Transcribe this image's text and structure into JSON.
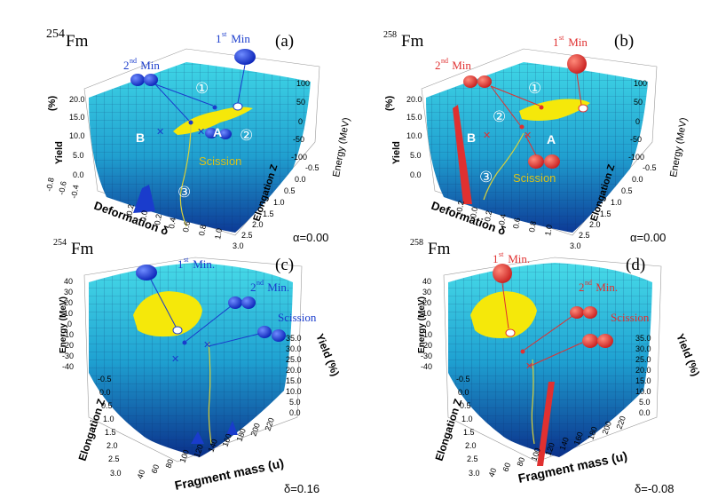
{
  "colors": {
    "blue_accent": "#1a3ccc",
    "red_accent": "#e03030",
    "surface": "#27b6d2",
    "surface_dark": "#0f3f9a",
    "yellow": "#f5e80a",
    "scission_text": "#d9c21a"
  },
  "panels": [
    {
      "nucleus_mass": "254",
      "nucleus_sym": "Fm",
      "panel_label": "(a)",
      "param": "α=0.00",
      "min1_label": "st",
      "min1_num": "1",
      "min1_word": " Min",
      "min2_num": "2",
      "min2_label": "nd",
      "min2_word": " Min",
      "circled": [
        "①",
        "②",
        "③"
      ],
      "point_A": "A",
      "point_B": "B",
      "scission": "Scission",
      "axis_x": "Deformation δ",
      "axis_y": "Elongation Z",
      "axis_yield": "Yield",
      "axis_yield_unit": "(%)",
      "axis_energy": "Energy (MeV)",
      "x_ticks": [
        "-0.8",
        "-0.6",
        "-0.4",
        "-0.2",
        "0.0",
        "0.2",
        "0.4",
        "0.6",
        "0.8",
        "1.0"
      ],
      "z_ticks": [
        "-0.5",
        "0.0",
        "0.5",
        "1.0",
        "1.5",
        "2.0",
        "2.5",
        "3.0"
      ],
      "yield_ticks": [
        "20.0",
        "15.0",
        "10.0",
        "5.0",
        "0.0"
      ],
      "energy_ticks": [
        "100",
        "50",
        "0",
        "-50",
        "-100"
      ]
    },
    {
      "nucleus_mass": "258",
      "nucleus_sym": "Fm",
      "panel_label": "(b)",
      "param": "α=0.00",
      "min1_label": "st",
      "min1_num": "1",
      "min1_word": " Min",
      "min2_num": "2",
      "min2_label": "nd",
      "min2_word": " Min",
      "circled": [
        "①",
        "②",
        "③"
      ],
      "point_A": "A",
      "point_B": "B",
      "scission": "Scission",
      "axis_x": "Deformation δ",
      "axis_y": "Elongation Z",
      "axis_yield": "Yield",
      "axis_yield_unit": "(%)",
      "axis_energy": "Energy (MeV)",
      "x_ticks": [
        "-0.8",
        "-0.6",
        "-0.4",
        "-0.2",
        "0.0",
        "0.2",
        "0.4",
        "0.6",
        "0.8",
        "1.0"
      ],
      "z_ticks": [
        "-0.5",
        "0.0",
        "0.5",
        "1.0",
        "1.5",
        "2.0",
        "2.5",
        "3.0"
      ],
      "yield_ticks": [
        "20.0",
        "15.0",
        "10.0",
        "5.0",
        "0.0"
      ],
      "energy_ticks": [
        "100",
        "50",
        "0",
        "-50",
        "-100"
      ]
    },
    {
      "nucleus_mass": "254",
      "nucleus_sym": "Fm",
      "panel_label": "(c)",
      "param": "δ=0.16",
      "min1_num": "1",
      "min1_label": "st",
      "min1_word": " Min.",
      "min2_num": "2",
      "min2_label": "nd",
      "min2_word": " Min.",
      "scission": "Scission",
      "axis_energy": "Energy (MeV)",
      "axis_z": "Elongation Z",
      "axis_mass": "Fragment mass (u)",
      "axis_yield": "Yield (%)",
      "energy_ticks": [
        "40",
        "30",
        "20",
        "10",
        "0",
        "-10",
        "-20",
        "-30",
        "-40"
      ],
      "z_ticks": [
        "-0.5",
        "0.0",
        "0.5",
        "1.0",
        "1.5",
        "2.0",
        "2.5",
        "3.0"
      ],
      "mass_ticks": [
        "40",
        "60",
        "80",
        "100",
        "120",
        "140",
        "160",
        "180",
        "200",
        "220"
      ],
      "yield_ticks": [
        "35.0",
        "30.0",
        "25.0",
        "20.0",
        "15.0",
        "10.0",
        "5.0",
        "0.0"
      ]
    },
    {
      "nucleus_mass": "258",
      "nucleus_sym": "Fm",
      "panel_label": "(d)",
      "param": "δ=-0.08",
      "min1_num": "1",
      "min1_label": "st",
      "min1_word": " Min.",
      "min2_num": "2",
      "min2_label": "nd",
      "min2_word": " Min.",
      "scission": "Scission",
      "axis_energy": "Energy (MeV)",
      "axis_z": "Elongation Z",
      "axis_mass": "Fragment mass (u)",
      "axis_yield": "Yield (%)",
      "energy_ticks": [
        "40",
        "30",
        "20",
        "10",
        "0",
        "-10",
        "-20",
        "-30",
        "-40"
      ],
      "z_ticks": [
        "-0.5",
        "0.0",
        "0.5",
        "1.0",
        "1.5",
        "2.0",
        "2.5",
        "3.0"
      ],
      "mass_ticks": [
        "40",
        "60",
        "80",
        "100",
        "120",
        "140",
        "160",
        "180",
        "200",
        "220"
      ],
      "yield_ticks": [
        "35.0",
        "30.0",
        "25.0",
        "20.0",
        "15.0",
        "10.0",
        "5.0",
        "0.0"
      ]
    }
  ]
}
